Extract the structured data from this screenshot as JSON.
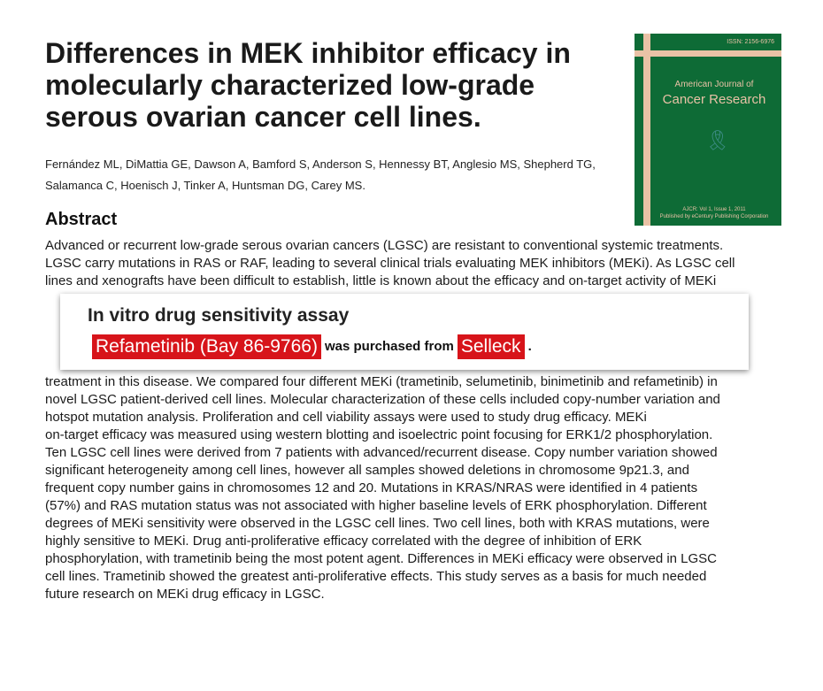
{
  "title": "Differences in MEK inhibitor efficacy in molecularly characterized low-grade serous ovarian cancer cell lines.",
  "authors": "Fernández ML, DiMattia GE, Dawson A, Bamford S, Anderson S, Hennessy BT, Anglesio MS, Shepherd TG, Salamanca C, Hoenisch J, Tinker A, Huntsman DG, Carey MS.",
  "cover": {
    "issn": "ISSN: 2156-6976",
    "journal_line1": "American Journal of",
    "journal_line2": "Cancer Research",
    "issue": "AJCR: Vol 1, Issue 1, 2011",
    "publisher": "Published by eCentury Publishing Corporation",
    "ribbon": "ribbon-icon"
  },
  "abstract_heading": "Abstract",
  "abstract_lines": [
    "Advanced or recurrent low-grade serous ovarian cancers (LGSC) are resistant to conventional systemic treatments.",
    "LGSC carry mutations in RAS or RAF, leading to several clinical trials evaluating MEK inhibitors (MEKi). As LGSC cell",
    "lines and xenografts have been difficult to establish, little is known about the efficacy and on-target activity of MEKi",
    "treatment in this disease. We compared four different MEKi (trametinib, selumetinib, binimetinib and refametinib) in",
    "novel LGSC patient-derived cell lines. Molecular characterization of these cells included copy-number variation and",
    "hotspot mutation analysis. Proliferation and cell viability assays were used to study drug efficacy. MEKi",
    "on-target efficacy was measured using western blotting and isoelectric point focusing for ERK1/2 phosphorylation.",
    "Ten LGSC cell lines were derived from 7 patients with advanced/recurrent disease. Copy number variation showed",
    "significant heterogeneity among cell lines, however all samples showed deletions in chromosome 9p21.3, and",
    "frequent copy number gains in chromosomes 12 and 20. Mutations in KRAS/NRAS were identified in 4 patients",
    "(57%) and RAS mutation status was not associated with higher baseline levels of ERK phosphorylation. Different",
    "degrees of MEKi sensitivity were observed in the LGSC cell lines. Two cell lines, both with KRAS mutations, were",
    "highly sensitive to MEKi. Drug anti-proliferative efficacy correlated with the degree of inhibition of ERK",
    "phosphorylation, with trametinib being the most potent agent. Differences in MEKi efficacy were observed in LGSC",
    "cell lines. Trametinib showed the greatest anti-proliferative effects. This study serves as a basis for much needed",
    "future research on MEKi drug efficacy in LGSC."
  ],
  "overlay": {
    "title": "In vitro drug sensitivity assay",
    "compound": "Refametinib (Bay 86-9766)",
    "middle": "was purchased from",
    "supplier": "Selleck",
    "end": "."
  }
}
